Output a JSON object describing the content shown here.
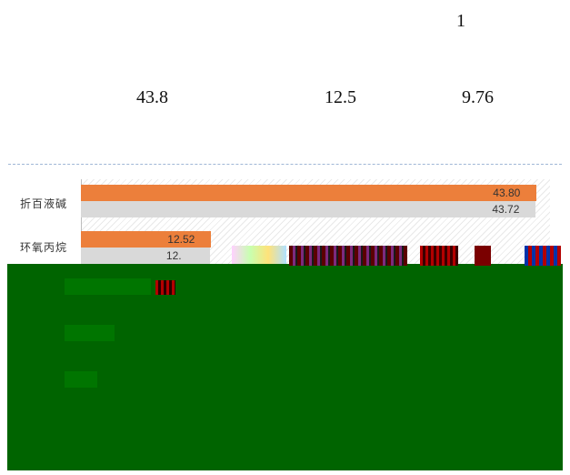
{
  "numbers": {
    "top": "1",
    "row": [
      "43.8",
      "12.5",
      "9.76"
    ]
  },
  "chart_data": {
    "type": "bar",
    "orientation": "horizontal",
    "categories": [
      "折百液碱",
      "环氧丙烷"
    ],
    "series": [
      {
        "values": [
          43.8,
          12.52
        ],
        "color": "#ec7f3b"
      },
      {
        "values": [
          43.72,
          12.4
        ],
        "color": "#d9d9d9"
      }
    ],
    "data_labels": [
      [
        "43.80",
        "43.72"
      ],
      [
        "12.52",
        "12."
      ]
    ],
    "xlim": [
      0,
      45
    ]
  }
}
